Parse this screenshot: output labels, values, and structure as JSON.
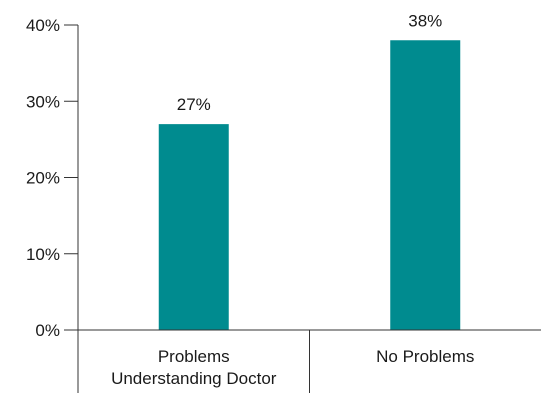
{
  "chart_data": {
    "type": "bar",
    "categories": [
      "Problems Understanding Doctor",
      "No Problems"
    ],
    "category_lines": [
      [
        "Problems",
        "Understanding Doctor"
      ],
      [
        "No Problems"
      ]
    ],
    "values": [
      27,
      38
    ],
    "data_labels": [
      "27%",
      "38%"
    ],
    "ylim": [
      0,
      40
    ],
    "y_ticks": [
      0,
      10,
      20,
      30,
      40
    ],
    "y_tick_labels": [
      "0%",
      "10%",
      "20%",
      "30%",
      "40%"
    ],
    "grid": false,
    "colors": {
      "bar": "#008B8F",
      "axis": "#333333",
      "text": "#1a1a1a"
    }
  }
}
